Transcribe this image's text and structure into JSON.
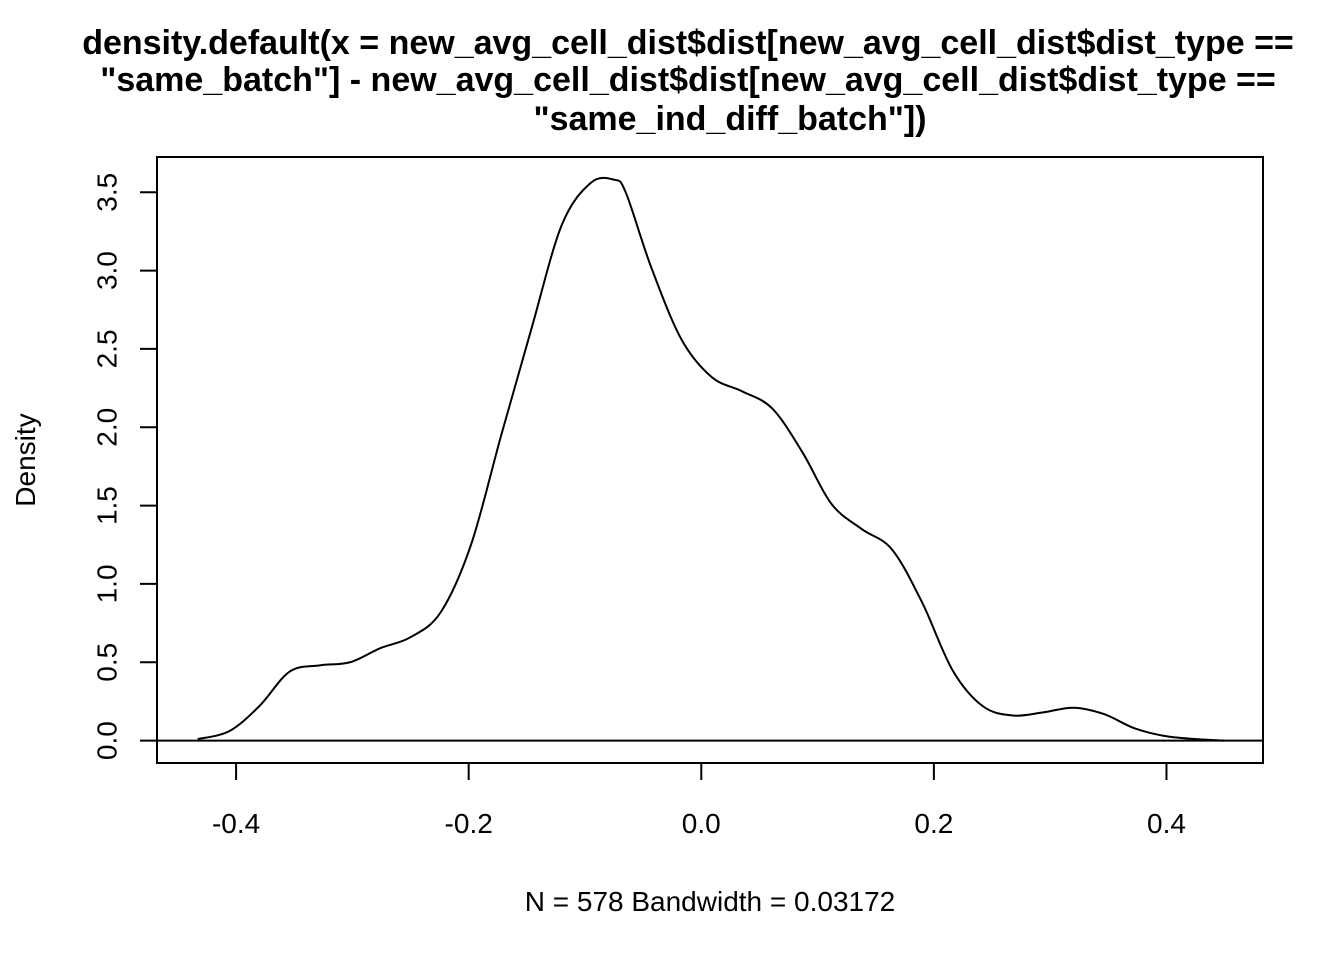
{
  "chart_data": {
    "type": "line",
    "title_lines": [
      "density.default(x = new_avg_cell_dist$dist[new_avg_cell_dist$dist_type ==",
      "\"same_batch\"] - new_avg_cell_dist$dist[new_avg_cell_dist$dist_type ==",
      "\"same_ind_diff_batch\"])"
    ],
    "xlabel": "N = 578   Bandwidth = 0.03172",
    "ylabel": "Density",
    "xlim": [
      -0.468,
      0.483
    ],
    "ylim": [
      -0.143,
      3.725
    ],
    "x_ticks": [
      -0.4,
      -0.2,
      0.0,
      0.2,
      0.4
    ],
    "x_tick_labels": [
      "-0.4",
      "-0.2",
      "0.0",
      "0.2",
      "0.4"
    ],
    "y_ticks": [
      0.0,
      0.5,
      1.0,
      1.5,
      2.0,
      2.5,
      3.0,
      3.5
    ],
    "y_tick_labels": [
      "0.0",
      "0.5",
      "1.0",
      "1.5",
      "2.0",
      "2.5",
      "3.0",
      "3.5"
    ],
    "grid": false,
    "legend": "none",
    "baseline_y": 0,
    "series": [
      {
        "x": [
          -0.433,
          -0.406,
          -0.38,
          -0.354,
          -0.328,
          -0.302,
          -0.276,
          -0.25,
          -0.224,
          -0.198,
          -0.172,
          -0.146,
          -0.12,
          -0.095,
          -0.075,
          -0.065,
          -0.043,
          -0.017,
          0.009,
          0.035,
          0.061,
          0.087,
          0.112,
          0.138,
          0.164,
          0.19,
          0.216,
          0.242,
          0.268,
          0.294,
          0.32,
          0.346,
          0.372,
          0.398,
          0.424,
          0.45
        ],
        "y": [
          0.01,
          0.06,
          0.22,
          0.44,
          0.48,
          0.5,
          0.59,
          0.66,
          0.82,
          1.25,
          1.95,
          2.63,
          3.29,
          3.56,
          3.58,
          3.5,
          3.02,
          2.56,
          2.32,
          2.23,
          2.12,
          1.84,
          1.51,
          1.35,
          1.22,
          0.88,
          0.45,
          0.22,
          0.16,
          0.18,
          0.21,
          0.17,
          0.08,
          0.03,
          0.01,
          0.0
        ]
      }
    ]
  }
}
